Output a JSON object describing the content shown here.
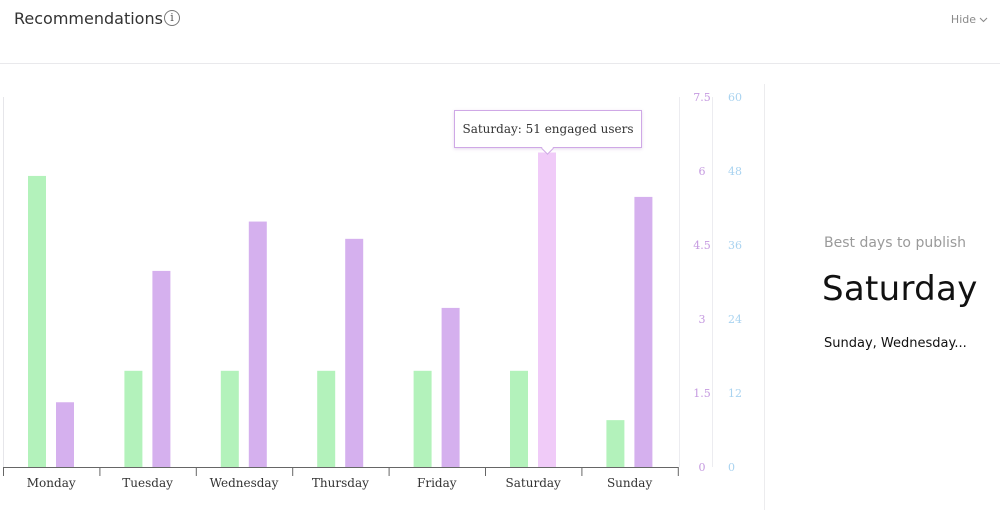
{
  "header": {
    "title": "Recommendations",
    "info_icon": "info-icon",
    "hide_label": "Hide",
    "hide_icon": "chevron-down-icon"
  },
  "tooltip": {
    "text": "Saturday: 51 engaged users"
  },
  "panel": {
    "label": "Best days to publish",
    "best_day": "Saturday",
    "other_days": "Sunday, Wednesday..."
  },
  "colors": {
    "green_bar": "#b3f2bb",
    "purple_bar": "#d5b0ee",
    "highlight_bar": "#f0cbf8",
    "axis_purple": "#c59ae0",
    "axis_blue": "#a9d3f0"
  },
  "chart_data": {
    "type": "bar",
    "categories": [
      "Monday",
      "Tuesday",
      "Wednesday",
      "Thursday",
      "Friday",
      "Saturday",
      "Sunday"
    ],
    "series": [
      {
        "axis": "left",
        "values": [
          5.9,
          1.95,
          1.95,
          1.95,
          1.95,
          1.95,
          0.95
        ]
      },
      {
        "axis": "right",
        "values": [
          10.5,
          31.8,
          39.8,
          37.0,
          25.8,
          51,
          43.8
        ]
      }
    ],
    "highlight_category": "Saturday",
    "y_axes": [
      {
        "name": "",
        "ticks": [
          "0",
          "1.5",
          "3",
          "4.5",
          "6",
          "7.5"
        ],
        "range": [
          0,
          7.5
        ]
      },
      {
        "name": "",
        "ticks": [
          "0",
          "12",
          "24",
          "36",
          "48",
          "60"
        ],
        "range": [
          0,
          60
        ]
      }
    ],
    "grid": false,
    "legend": "none"
  }
}
